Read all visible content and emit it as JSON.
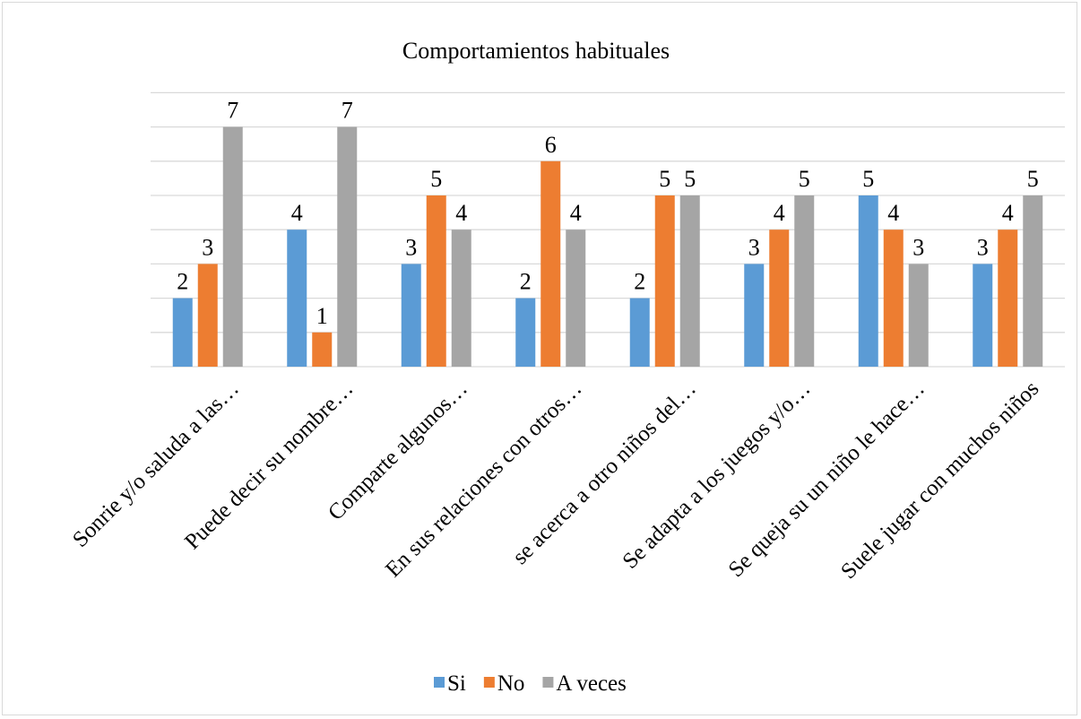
{
  "chart_data": {
    "type": "bar",
    "title": "Comportamientos habituales",
    "categories": [
      "Sonrie y/o saluda a las…",
      "Puede decir su nombre…",
      "Comparte algunos…",
      "En sus relaciones con otros…",
      "se acerca a otro niños del…",
      "Se adapta a los juegos y/o…",
      "Se queja su un niño le hace…",
      "Suele jugar con muchos niños"
    ],
    "series": [
      {
        "name": "Si",
        "color": "#5b9bd5",
        "values": [
          2,
          4,
          3,
          2,
          2,
          3,
          5,
          3
        ]
      },
      {
        "name": "No",
        "color": "#ed7d31",
        "values": [
          3,
          1,
          5,
          6,
          5,
          4,
          4,
          4
        ]
      },
      {
        "name": "A veces",
        "color": "#a5a5a5",
        "values": [
          7,
          7,
          4,
          4,
          5,
          5,
          3,
          5
        ]
      }
    ],
    "ylim": [
      0,
      8
    ],
    "gridlines": true,
    "y_tick_labels_visible": false,
    "data_labels": true,
    "legend_position": "bottom"
  }
}
